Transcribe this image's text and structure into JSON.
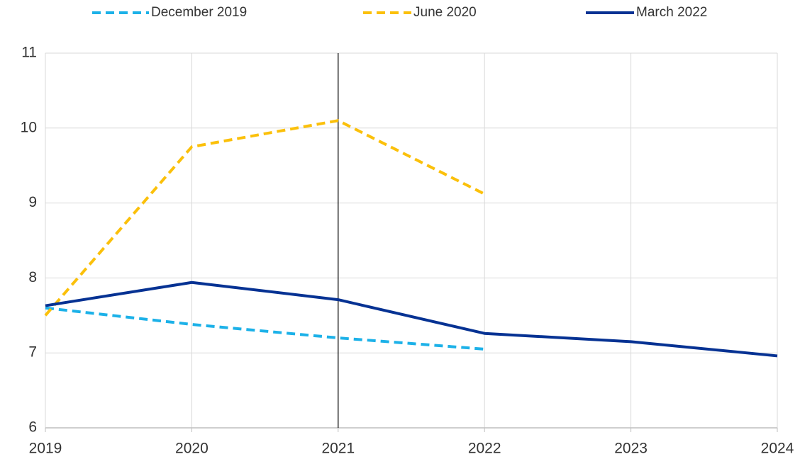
{
  "chart_data": {
    "type": "line",
    "x": [
      2019,
      2020,
      2021,
      2022,
      2023,
      2024
    ],
    "series": [
      {
        "name": "December 2019",
        "color": "#1cb1e8",
        "style": "dashed",
        "values": [
          7.6,
          7.38,
          7.2,
          7.05,
          null,
          null
        ]
      },
      {
        "name": "June 2020",
        "color": "#fbc00a",
        "style": "dashed",
        "values": [
          7.5,
          9.75,
          10.1,
          9.12,
          null,
          null
        ]
      },
      {
        "name": "March 2022",
        "color": "#063293",
        "style": "solid",
        "values": [
          7.63,
          7.94,
          7.71,
          7.26,
          7.15,
          6.96
        ]
      }
    ],
    "xlim": [
      2019,
      2024
    ],
    "xticks": [
      2019,
      2020,
      2021,
      2022,
      2023,
      2024
    ],
    "ylim": [
      6,
      11
    ],
    "yticks": [
      6,
      7,
      8,
      9,
      10,
      11
    ],
    "grid": true,
    "legend": "top",
    "vline": 2021
  }
}
